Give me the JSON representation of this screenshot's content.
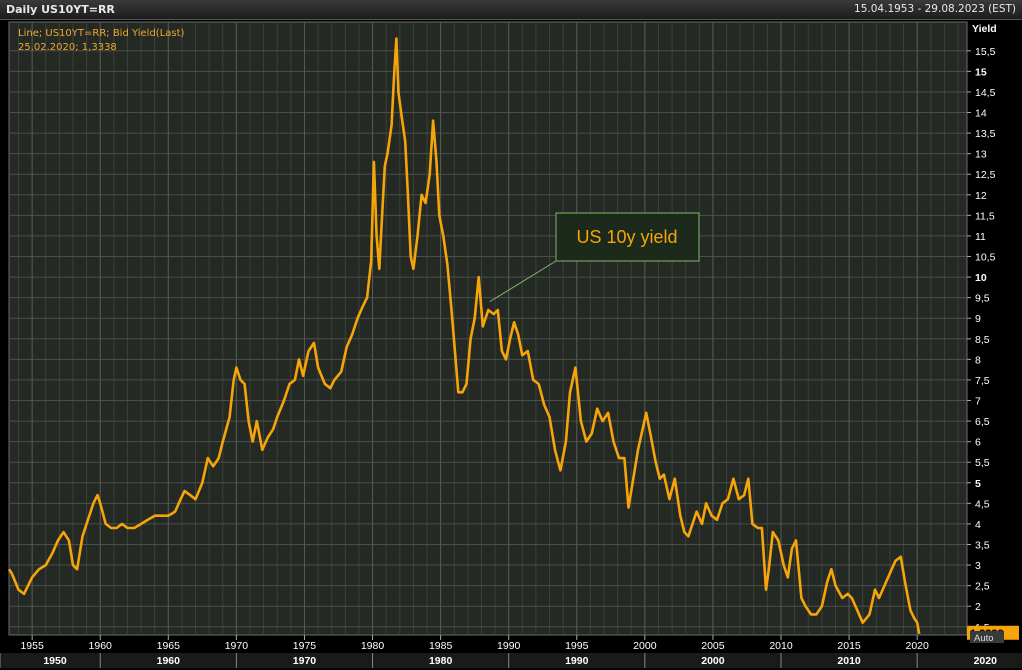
{
  "header": {
    "title": "Daily US10YT=RR",
    "date_range": "15.04.1953 - 29.08.2023 (EST)"
  },
  "legend": {
    "line1": "Line; US10YT=RR; Bid Yield(Last)",
    "line2": "25.02.2020; 1,3338"
  },
  "annotation": {
    "text": "US 10y yield"
  },
  "last_value": "1,3338",
  "auto_label": "Auto",
  "colors": {
    "background": "#242924",
    "grid": "#4a4f4a",
    "line": "#f5a50a",
    "annotation_border": "#6fa15a",
    "axis_text": "#ffffff"
  },
  "chart_data": {
    "type": "line",
    "title": "",
    "xlabel": "",
    "ylabel": "Yield",
    "xlim": [
      1953.3,
      2023.66
    ],
    "ylim": [
      1.3,
      16.2
    ],
    "y_ticks": [
      {
        "v": 1.5,
        "label": "1,5",
        "bold": false
      },
      {
        "v": 2,
        "label": "2",
        "bold": false
      },
      {
        "v": 2.5,
        "label": "2,5",
        "bold": false
      },
      {
        "v": 3,
        "label": "3",
        "bold": false
      },
      {
        "v": 3.5,
        "label": "3,5",
        "bold": false
      },
      {
        "v": 4,
        "label": "4",
        "bold": false
      },
      {
        "v": 4.5,
        "label": "4,5",
        "bold": false
      },
      {
        "v": 5,
        "label": "5",
        "bold": true
      },
      {
        "v": 5.5,
        "label": "5,5",
        "bold": false
      },
      {
        "v": 6,
        "label": "6",
        "bold": false
      },
      {
        "v": 6.5,
        "label": "6,5",
        "bold": false
      },
      {
        "v": 7,
        "label": "7",
        "bold": false
      },
      {
        "v": 7.5,
        "label": "7,5",
        "bold": false
      },
      {
        "v": 8,
        "label": "8",
        "bold": false
      },
      {
        "v": 8.5,
        "label": "8,5",
        "bold": false
      },
      {
        "v": 9,
        "label": "9",
        "bold": false
      },
      {
        "v": 9.5,
        "label": "9,5",
        "bold": false
      },
      {
        "v": 10,
        "label": "10",
        "bold": true
      },
      {
        "v": 10.5,
        "label": "10,5",
        "bold": false
      },
      {
        "v": 11,
        "label": "11",
        "bold": false
      },
      {
        "v": 11.5,
        "label": "11,5",
        "bold": false
      },
      {
        "v": 12,
        "label": "12",
        "bold": false
      },
      {
        "v": 12.5,
        "label": "12,5",
        "bold": false
      },
      {
        "v": 13,
        "label": "13",
        "bold": false
      },
      {
        "v": 13.5,
        "label": "13,5",
        "bold": false
      },
      {
        "v": 14,
        "label": "14",
        "bold": false
      },
      {
        "v": 14.5,
        "label": "14,5",
        "bold": false
      },
      {
        "v": 15,
        "label": "15",
        "bold": true
      },
      {
        "v": 15.5,
        "label": "15,5",
        "bold": false
      }
    ],
    "x_ticks": [
      {
        "v": 1955,
        "label": "1955"
      },
      {
        "v": 1960,
        "label": "1960"
      },
      {
        "v": 1965,
        "label": "1965"
      },
      {
        "v": 1970,
        "label": "1970"
      },
      {
        "v": 1975,
        "label": "1975"
      },
      {
        "v": 1980,
        "label": "1980"
      },
      {
        "v": 1985,
        "label": "1985"
      },
      {
        "v": 1990,
        "label": "1990"
      },
      {
        "v": 1995,
        "label": "1995"
      },
      {
        "v": 2000,
        "label": "2000"
      },
      {
        "v": 2005,
        "label": "2005"
      },
      {
        "v": 2010,
        "label": "2010"
      },
      {
        "v": 2015,
        "label": "2015"
      },
      {
        "v": 2020,
        "label": "2020"
      }
    ],
    "decades": [
      {
        "start": 1950,
        "label": "1950"
      },
      {
        "start": 1960,
        "label": "1960"
      },
      {
        "start": 1970,
        "label": "1970"
      },
      {
        "start": 1980,
        "label": "1980"
      },
      {
        "start": 1990,
        "label": "1990"
      },
      {
        "start": 2000,
        "label": "2000"
      },
      {
        "start": 2010,
        "label": "2010"
      },
      {
        "start": 2020,
        "label": "2020"
      }
    ],
    "grid": true,
    "series": [
      {
        "name": "US10YT=RR",
        "x": [
          1953.3,
          1953.5,
          1954.0,
          1954.4,
          1954.7,
          1955.0,
          1955.5,
          1956.0,
          1956.5,
          1956.9,
          1957.3,
          1957.7,
          1958.0,
          1958.3,
          1958.7,
          1959.0,
          1959.5,
          1959.8,
          1960.0,
          1960.4,
          1960.8,
          1961.2,
          1961.6,
          1962.0,
          1962.5,
          1963.0,
          1963.5,
          1964.0,
          1964.5,
          1965.0,
          1965.5,
          1965.9,
          1966.2,
          1966.6,
          1967.0,
          1967.5,
          1967.9,
          1968.3,
          1968.7,
          1969.0,
          1969.5,
          1969.8,
          1970.0,
          1970.3,
          1970.6,
          1970.9,
          1971.2,
          1971.5,
          1971.9,
          1972.3,
          1972.7,
          1973.0,
          1973.5,
          1973.9,
          1974.3,
          1974.6,
          1974.9,
          1975.3,
          1975.7,
          1976.0,
          1976.5,
          1976.9,
          1977.2,
          1977.7,
          1978.1,
          1978.5,
          1978.9,
          1979.3,
          1979.6,
          1979.9,
          1980.1,
          1980.3,
          1980.5,
          1980.7,
          1980.9,
          1981.1,
          1981.4,
          1981.6,
          1981.75,
          1981.9,
          1982.1,
          1982.4,
          1982.6,
          1982.8,
          1983.0,
          1983.3,
          1983.6,
          1983.9,
          1984.2,
          1984.45,
          1984.7,
          1984.9,
          1985.2,
          1985.5,
          1985.8,
          1986.1,
          1986.3,
          1986.6,
          1986.9,
          1987.2,
          1987.5,
          1987.8,
          1988.1,
          1988.5,
          1988.9,
          1989.2,
          1989.5,
          1989.8,
          1990.1,
          1990.4,
          1990.7,
          1991.0,
          1991.4,
          1991.8,
          1992.2,
          1992.6,
          1993.0,
          1993.4,
          1993.8,
          1994.2,
          1994.5,
          1994.9,
          1995.3,
          1995.7,
          1996.1,
          1996.5,
          1996.9,
          1997.3,
          1997.7,
          1998.1,
          1998.5,
          1998.8,
          1999.1,
          1999.5,
          1999.9,
          2000.1,
          2000.4,
          2000.8,
          2001.1,
          2001.4,
          2001.8,
          2002.2,
          2002.6,
          2002.9,
          2003.2,
          2003.5,
          2003.8,
          2004.2,
          2004.5,
          2004.9,
          2005.3,
          2005.7,
          2006.1,
          2006.5,
          2006.9,
          2007.3,
          2007.6,
          2007.9,
          2008.3,
          2008.6,
          2008.9,
          2009.1,
          2009.4,
          2009.8,
          2010.2,
          2010.5,
          2010.8,
          2011.1,
          2011.5,
          2011.8,
          2012.2,
          2012.6,
          2013.0,
          2013.4,
          2013.7,
          2014.0,
          2014.5,
          2014.9,
          2015.2,
          2015.6,
          2016.0,
          2016.5,
          2016.9,
          2017.2,
          2017.6,
          2018.0,
          2018.4,
          2018.8,
          2019.1,
          2019.5,
          2019.8,
          2020.0,
          2020.15
        ],
        "y": [
          2.9,
          2.8,
          2.4,
          2.3,
          2.5,
          2.7,
          2.9,
          3.0,
          3.3,
          3.6,
          3.8,
          3.6,
          3.0,
          2.9,
          3.7,
          4.0,
          4.5,
          4.7,
          4.5,
          4.0,
          3.9,
          3.9,
          4.0,
          3.9,
          3.9,
          4.0,
          4.1,
          4.2,
          4.2,
          4.2,
          4.3,
          4.6,
          4.8,
          4.7,
          4.6,
          5.0,
          5.6,
          5.4,
          5.6,
          6.0,
          6.6,
          7.5,
          7.8,
          7.5,
          7.4,
          6.5,
          6.0,
          6.5,
          5.8,
          6.1,
          6.3,
          6.6,
          7.0,
          7.4,
          7.5,
          8.0,
          7.6,
          8.2,
          8.4,
          7.8,
          7.4,
          7.3,
          7.5,
          7.7,
          8.3,
          8.6,
          9.0,
          9.3,
          9.5,
          10.4,
          12.8,
          11.0,
          10.2,
          11.5,
          12.7,
          13.0,
          13.7,
          15.0,
          15.8,
          14.5,
          14.0,
          13.3,
          12.0,
          10.5,
          10.2,
          11.0,
          12.0,
          11.8,
          12.5,
          13.8,
          12.8,
          11.5,
          11.0,
          10.3,
          9.2,
          8.0,
          7.2,
          7.2,
          7.4,
          8.5,
          9.0,
          10.0,
          8.8,
          9.2,
          9.1,
          9.2,
          8.2,
          8.0,
          8.5,
          8.9,
          8.6,
          8.1,
          8.2,
          7.5,
          7.4,
          6.9,
          6.6,
          5.8,
          5.3,
          6.0,
          7.2,
          7.8,
          6.5,
          6.0,
          6.2,
          6.8,
          6.5,
          6.7,
          6.0,
          5.6,
          5.6,
          4.4,
          5.0,
          5.8,
          6.4,
          6.7,
          6.2,
          5.5,
          5.1,
          5.2,
          4.6,
          5.1,
          4.2,
          3.8,
          3.7,
          4.0,
          4.3,
          4.0,
          4.5,
          4.2,
          4.1,
          4.5,
          4.6,
          5.1,
          4.6,
          4.7,
          5.1,
          4.0,
          3.9,
          3.9,
          2.4,
          2.9,
          3.8,
          3.6,
          3.0,
          2.7,
          3.4,
          3.6,
          2.2,
          2.0,
          1.8,
          1.8,
          2.0,
          2.6,
          2.9,
          2.5,
          2.2,
          2.3,
          2.2,
          1.9,
          1.6,
          1.8,
          2.4,
          2.2,
          2.5,
          2.8,
          3.1,
          3.2,
          2.6,
          1.9,
          1.7,
          1.6,
          1.33
        ]
      }
    ],
    "annotations": [
      {
        "text": "US 10y yield",
        "x": 1988.6,
        "y": 9.4
      }
    ]
  }
}
